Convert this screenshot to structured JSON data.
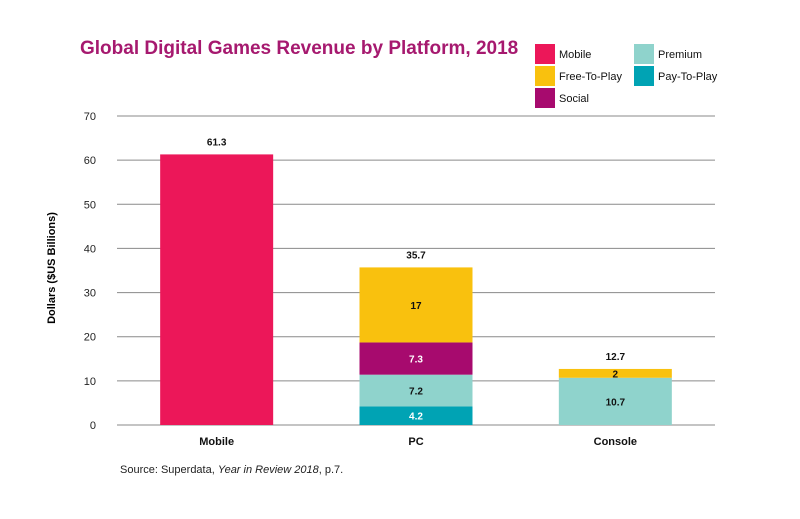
{
  "chart_data": {
    "type": "bar",
    "stacked": true,
    "title": "Global Digital Games Revenue by Platform, 2018",
    "ylabel": "Dollars ($US Billions)",
    "xlabel": "",
    "ylim": [
      0,
      70
    ],
    "yticks": [
      0,
      10,
      20,
      30,
      40,
      50,
      60,
      70
    ],
    "grid": true,
    "legend_position": "top-right",
    "categories": [
      "Mobile",
      "PC",
      "Console"
    ],
    "totals": [
      "61.3",
      "35.7",
      "12.7"
    ],
    "series": [
      {
        "name": "Pay-To-Play",
        "color": "#00a3b4",
        "values": [
          null,
          4.2,
          null
        ]
      },
      {
        "name": "Premium",
        "color": "#8fd3cc",
        "values": [
          null,
          7.2,
          10.7
        ]
      },
      {
        "name": "Social",
        "color": "#a70a6e",
        "values": [
          null,
          7.3,
          null
        ]
      },
      {
        "name": "Free-To-Play",
        "color": "#f9c10e",
        "values": [
          null,
          17,
          2
        ]
      },
      {
        "name": "Mobile",
        "color": "#ec1759",
        "values": [
          61.3,
          null,
          null
        ]
      }
    ],
    "legend_order": [
      "Mobile",
      "Premium",
      "Free-To-Play",
      "Pay-To-Play",
      "Social"
    ]
  },
  "title_color": "#a6196f",
  "source": {
    "prefix": "Source: Superdata, ",
    "italic": "Year in Review 2018",
    "suffix": ", p.7."
  }
}
